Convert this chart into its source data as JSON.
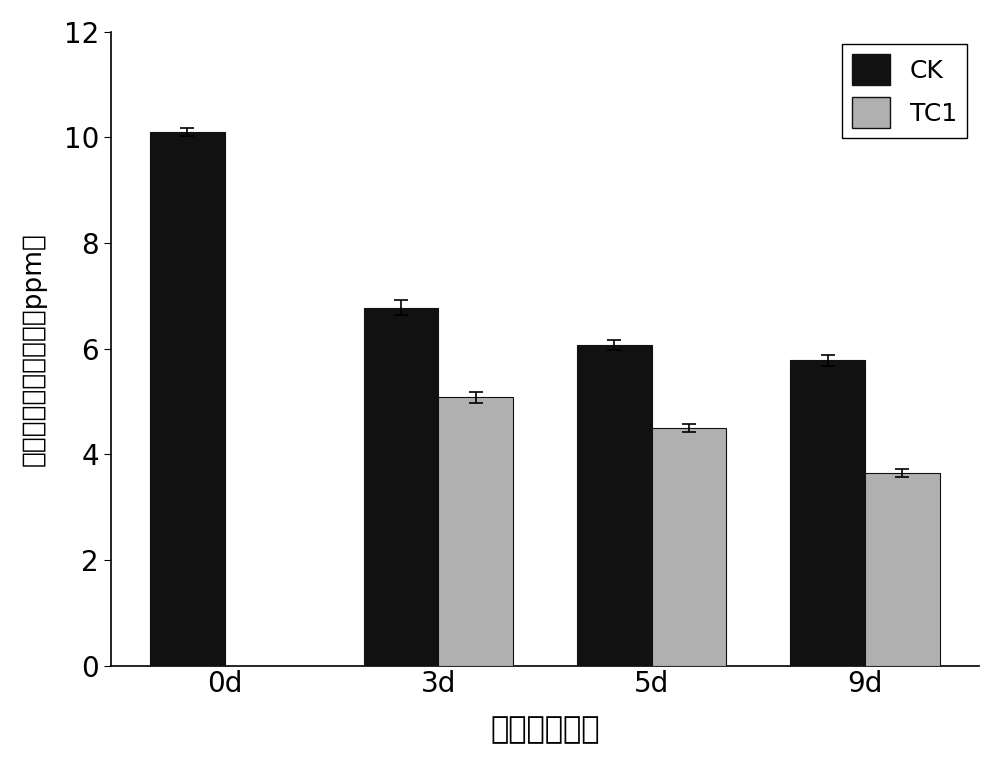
{
  "categories": [
    "0d",
    "3d",
    "5d",
    "9d"
  ],
  "ck_values": [
    10.1,
    6.78,
    6.07,
    5.78
  ],
  "tc1_values": [
    null,
    5.08,
    4.5,
    3.65
  ],
  "ck_errors": [
    0.08,
    0.15,
    0.1,
    0.1
  ],
  "tc1_errors": [
    null,
    0.1,
    0.08,
    0.08
  ],
  "ck_color": "#111111",
  "tc1_color": "#b0b0b0",
  "bar_width": 0.35,
  "ylim": [
    0,
    12
  ],
  "yticks": [
    0,
    2,
    4,
    6,
    8,
    10,
    12
  ],
  "xlabel": "时间　（天）",
  "ylabel_line1": "四　环素　残留浓度（ppm）",
  "legend_labels": [
    "CK",
    "TC1"
  ],
  "xlabel_fontsize": 22,
  "ylabel_fontsize": 19,
  "tick_fontsize": 20,
  "legend_fontsize": 18,
  "edge_color": "#111111",
  "background_color": "#ffffff"
}
